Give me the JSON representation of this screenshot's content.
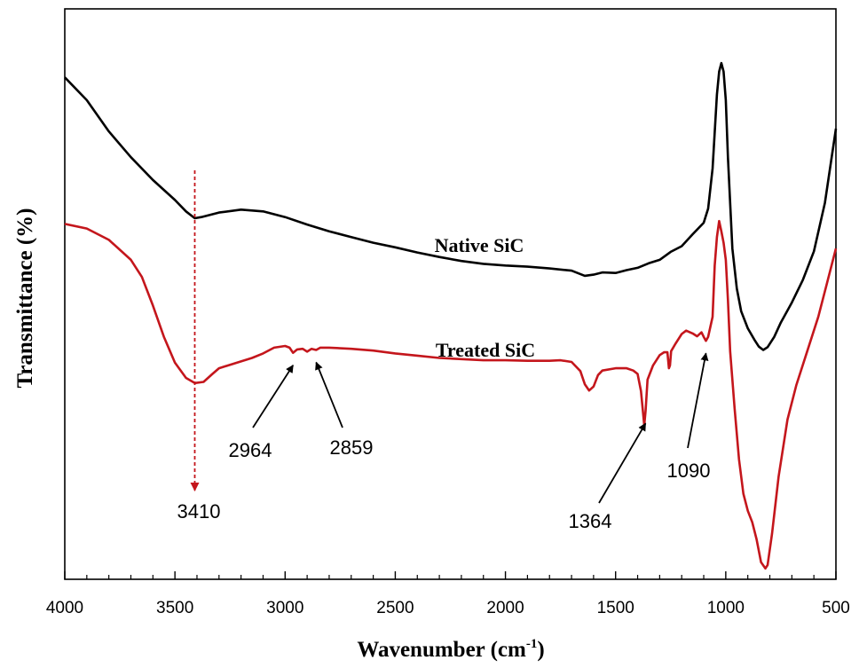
{
  "chart_data": {
    "type": "line",
    "title": "",
    "xlabel": "Wavenumber (cm",
    "xlabel_sup": "-1",
    "xlabel_close": ")",
    "ylabel": "Transmittance (%)",
    "xlim": [
      4000,
      500
    ],
    "ylim": [
      0,
      100
    ],
    "x_reversed": true,
    "y_ticks_labeled": false,
    "grid": false,
    "x_ticks": [
      "4000",
      "3500",
      "3000",
      "2500",
      "2000",
      "1500",
      "1000",
      "500"
    ],
    "series": [
      {
        "name": "Native SiC",
        "color": "#000000",
        "points": [
          [
            4000,
            88
          ],
          [
            3900,
            84
          ],
          [
            3800,
            78.5
          ],
          [
            3700,
            74
          ],
          [
            3600,
            70
          ],
          [
            3500,
            66.5
          ],
          [
            3450,
            64.5
          ],
          [
            3410,
            63.3
          ],
          [
            3380,
            63.5
          ],
          [
            3300,
            64.3
          ],
          [
            3200,
            64.8
          ],
          [
            3100,
            64.5
          ],
          [
            3000,
            63.5
          ],
          [
            2900,
            62.2
          ],
          [
            2800,
            61
          ],
          [
            2700,
            60
          ],
          [
            2600,
            59
          ],
          [
            2500,
            58.2
          ],
          [
            2400,
            57.3
          ],
          [
            2300,
            56.5
          ],
          [
            2200,
            55.8
          ],
          [
            2100,
            55.3
          ],
          [
            2000,
            55
          ],
          [
            1900,
            54.8
          ],
          [
            1800,
            54.5
          ],
          [
            1700,
            54.1
          ],
          [
            1640,
            53.2
          ],
          [
            1600,
            53.4
          ],
          [
            1560,
            53.8
          ],
          [
            1500,
            53.7
          ],
          [
            1450,
            54.2
          ],
          [
            1400,
            54.6
          ],
          [
            1350,
            55.4
          ],
          [
            1300,
            56
          ],
          [
            1250,
            57.4
          ],
          [
            1200,
            58.4
          ],
          [
            1150,
            60.5
          ],
          [
            1100,
            62.5
          ],
          [
            1080,
            65
          ],
          [
            1060,
            72
          ],
          [
            1040,
            85
          ],
          [
            1030,
            89
          ],
          [
            1020,
            90.5
          ],
          [
            1010,
            89
          ],
          [
            1000,
            84
          ],
          [
            990,
            74
          ],
          [
            970,
            58
          ],
          [
            950,
            51
          ],
          [
            930,
            47
          ],
          [
            900,
            44
          ],
          [
            870,
            42
          ],
          [
            850,
            40.8
          ],
          [
            830,
            40.2
          ],
          [
            810,
            40.7
          ],
          [
            780,
            42.5
          ],
          [
            750,
            45
          ],
          [
            700,
            48.5
          ],
          [
            650,
            52.5
          ],
          [
            600,
            57.5
          ],
          [
            550,
            66
          ],
          [
            500,
            79
          ]
        ]
      },
      {
        "name": "Treated SiC",
        "color": "#c4161c",
        "points": [
          [
            4000,
            62.3
          ],
          [
            3900,
            61.5
          ],
          [
            3800,
            59.5
          ],
          [
            3700,
            56
          ],
          [
            3650,
            53
          ],
          [
            3600,
            48
          ],
          [
            3550,
            42.5
          ],
          [
            3500,
            38
          ],
          [
            3450,
            35.3
          ],
          [
            3410,
            34.4
          ],
          [
            3370,
            34.6
          ],
          [
            3330,
            36
          ],
          [
            3300,
            37
          ],
          [
            3250,
            37.6
          ],
          [
            3200,
            38.2
          ],
          [
            3150,
            38.8
          ],
          [
            3100,
            39.6
          ],
          [
            3050,
            40.6
          ],
          [
            3000,
            40.9
          ],
          [
            2980,
            40.6
          ],
          [
            2964,
            39.7
          ],
          [
            2945,
            40.3
          ],
          [
            2920,
            40.4
          ],
          [
            2900,
            39.9
          ],
          [
            2880,
            40.4
          ],
          [
            2859,
            40.2
          ],
          [
            2840,
            40.6
          ],
          [
            2800,
            40.6
          ],
          [
            2700,
            40.4
          ],
          [
            2600,
            40.1
          ],
          [
            2500,
            39.6
          ],
          [
            2400,
            39.2
          ],
          [
            2300,
            38.8
          ],
          [
            2200,
            38.6
          ],
          [
            2100,
            38.4
          ],
          [
            2000,
            38.4
          ],
          [
            1900,
            38.3
          ],
          [
            1800,
            38.3
          ],
          [
            1750,
            38.4
          ],
          [
            1700,
            38.1
          ],
          [
            1660,
            36.5
          ],
          [
            1640,
            34.2
          ],
          [
            1620,
            33.1
          ],
          [
            1600,
            33.8
          ],
          [
            1580,
            35.8
          ],
          [
            1560,
            36.6
          ],
          [
            1500,
            37
          ],
          [
            1450,
            37
          ],
          [
            1420,
            36.6
          ],
          [
            1400,
            36
          ],
          [
            1385,
            33
          ],
          [
            1370,
            27
          ],
          [
            1364,
            29.5
          ],
          [
            1355,
            35
          ],
          [
            1330,
            37.5
          ],
          [
            1300,
            39.3
          ],
          [
            1280,
            39.8
          ],
          [
            1265,
            39.8
          ],
          [
            1258,
            37
          ],
          [
            1253,
            37.5
          ],
          [
            1248,
            40
          ],
          [
            1230,
            41.2
          ],
          [
            1200,
            43
          ],
          [
            1180,
            43.6
          ],
          [
            1150,
            43.1
          ],
          [
            1130,
            42.6
          ],
          [
            1110,
            43.3
          ],
          [
            1100,
            42.5
          ],
          [
            1090,
            41.8
          ],
          [
            1080,
            42.5
          ],
          [
            1060,
            46
          ],
          [
            1050,
            55
          ],
          [
            1040,
            60
          ],
          [
            1030,
            62.8
          ],
          [
            1020,
            61
          ],
          [
            1010,
            59
          ],
          [
            1000,
            56
          ],
          [
            990,
            49
          ],
          [
            980,
            40
          ],
          [
            960,
            30
          ],
          [
            940,
            21
          ],
          [
            920,
            15
          ],
          [
            900,
            12
          ],
          [
            880,
            10
          ],
          [
            860,
            7
          ],
          [
            840,
            3
          ],
          [
            820,
            1.9
          ],
          [
            810,
            2.5
          ],
          [
            790,
            8
          ],
          [
            760,
            18
          ],
          [
            720,
            28
          ],
          [
            680,
            34
          ],
          [
            630,
            40
          ],
          [
            580,
            46
          ],
          [
            540,
            52
          ],
          [
            500,
            58
          ]
        ]
      }
    ],
    "annotations": [
      {
        "text": "3410",
        "x": 3410,
        "style": "dashed-vertical-arrow",
        "color": "#c4161c"
      },
      {
        "text": "2964",
        "x": 2964,
        "style": "arrow"
      },
      {
        "text": "2859",
        "x": 2859,
        "style": "arrow"
      },
      {
        "text": "1364",
        "x": 1364,
        "style": "arrow"
      },
      {
        "text": "1090",
        "x": 1090,
        "style": "arrow"
      }
    ]
  }
}
